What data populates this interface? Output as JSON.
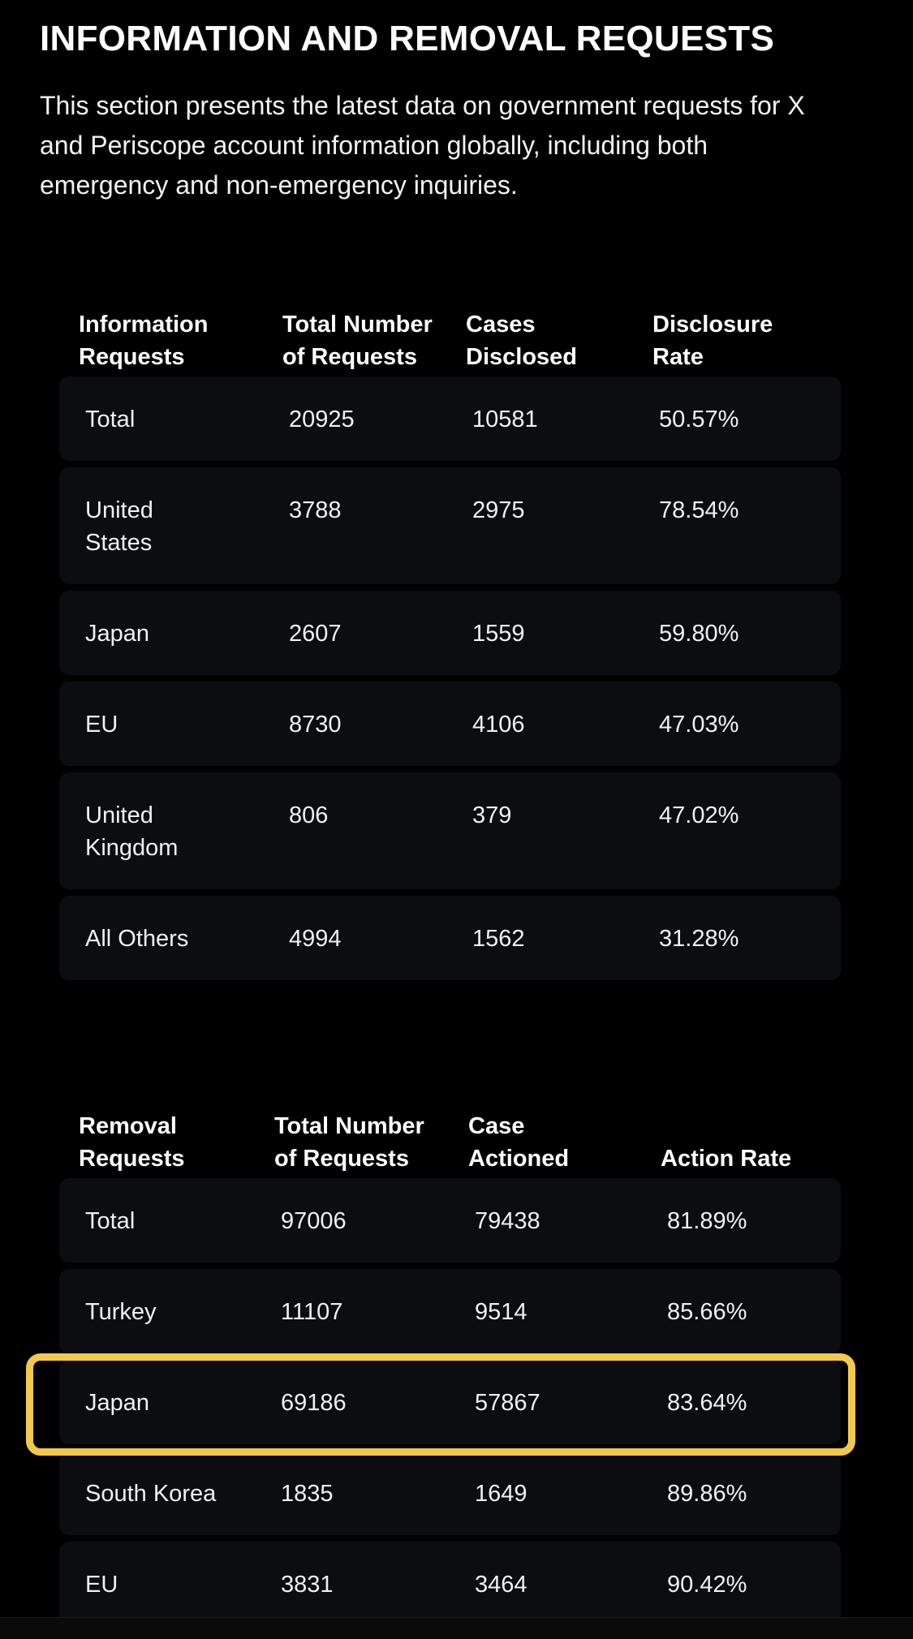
{
  "section": {
    "title": "INFORMATION AND REMOVAL REQUESTS",
    "intro": "This section presents the latest data on government requests for X and Periscope account information globally, including both emergency and non-emergency inquiries."
  },
  "info_table": {
    "headers": [
      "Information\nRequests",
      "Total Number\nof Requests",
      "Cases\nDisclosed",
      "Disclosure\nRate"
    ],
    "rows": [
      {
        "name": "Total",
        "total": "20925",
        "disclosed": "10581",
        "rate": "50.57%"
      },
      {
        "name": "United\nStates",
        "total": "3788",
        "disclosed": "2975",
        "rate": "78.54%"
      },
      {
        "name": "Japan",
        "total": "2607",
        "disclosed": "1559",
        "rate": "59.80%"
      },
      {
        "name": "EU",
        "total": "8730",
        "disclosed": "4106",
        "rate": "47.03%"
      },
      {
        "name": "United\nKingdom",
        "total": "806",
        "disclosed": "379",
        "rate": "47.02%"
      },
      {
        "name": "All Others",
        "total": "4994",
        "disclosed": "1562",
        "rate": "31.28%"
      }
    ]
  },
  "removal_table": {
    "headers": [
      "Removal\nRequests",
      "Total Number\nof Requests",
      "Case\nActioned",
      "Action Rate"
    ],
    "rows": [
      {
        "name": "Total",
        "total": "97006",
        "actioned": "79438",
        "rate": "81.89%"
      },
      {
        "name": "Turkey",
        "total": "11107",
        "actioned": "9514",
        "rate": "85.66%"
      },
      {
        "name": "Japan",
        "total": "69186",
        "actioned": "57867",
        "rate": "83.64%"
      },
      {
        "name": "South Korea",
        "total": "1835",
        "actioned": "1649",
        "rate": "89.86%"
      },
      {
        "name": "EU",
        "total": "3831",
        "actioned": "3464",
        "rate": "90.42%"
      }
    ],
    "highlight_color": "#f2c94c"
  }
}
